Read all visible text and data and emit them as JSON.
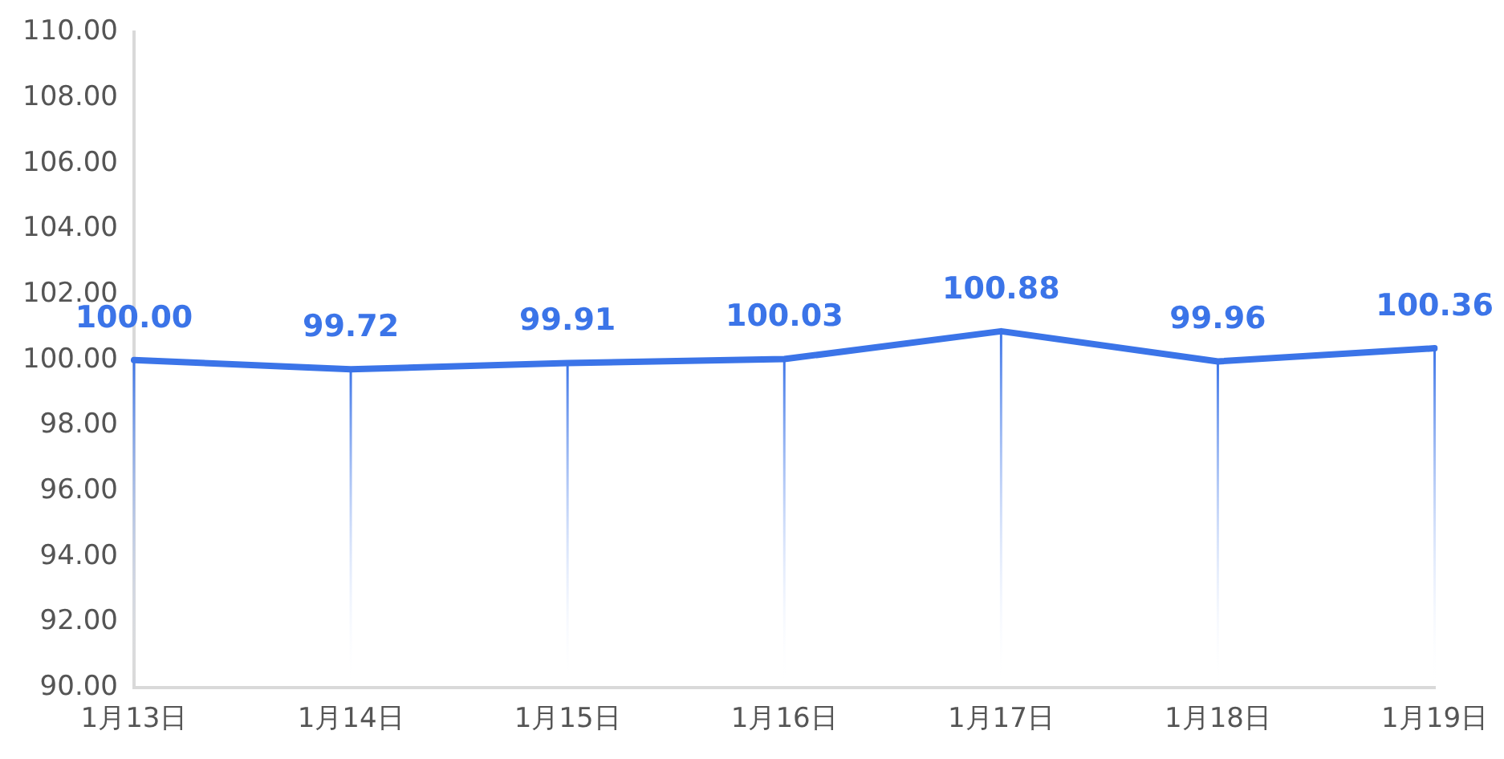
{
  "chart_data": {
    "type": "line",
    "categories": [
      "1月13日",
      "1月14日",
      "1月15日",
      "1月16日",
      "1月17日",
      "1月18日",
      "1月19日"
    ],
    "series": [
      {
        "color": "#3b74e8",
        "values": [
          100.0,
          99.72,
          99.91,
          100.03,
          100.88,
          99.96,
          100.36
        ]
      }
    ],
    "ylim": [
      90,
      110
    ],
    "yticks": [
      {
        "value": 90,
        "label": "90.00"
      },
      {
        "value": 92,
        "label": "92.00"
      },
      {
        "value": 94,
        "label": "94.00"
      },
      {
        "value": 96,
        "label": "96.00"
      },
      {
        "value": 98,
        "label": "98.00"
      },
      {
        "value": 100,
        "label": "100.00"
      },
      {
        "value": 102,
        "label": "102.00"
      },
      {
        "value": 104,
        "label": "104.00"
      },
      {
        "value": 106,
        "label": "106.00"
      },
      {
        "value": 108,
        "label": "108.00"
      },
      {
        "value": 110,
        "label": "110.00"
      }
    ],
    "value_labels": [
      "100.00",
      "99.72",
      "99.91",
      "100.03",
      "100.88",
      "99.96",
      "100.36"
    ],
    "grid": false,
    "legend": false,
    "marker": "none",
    "line_style": "solid"
  }
}
